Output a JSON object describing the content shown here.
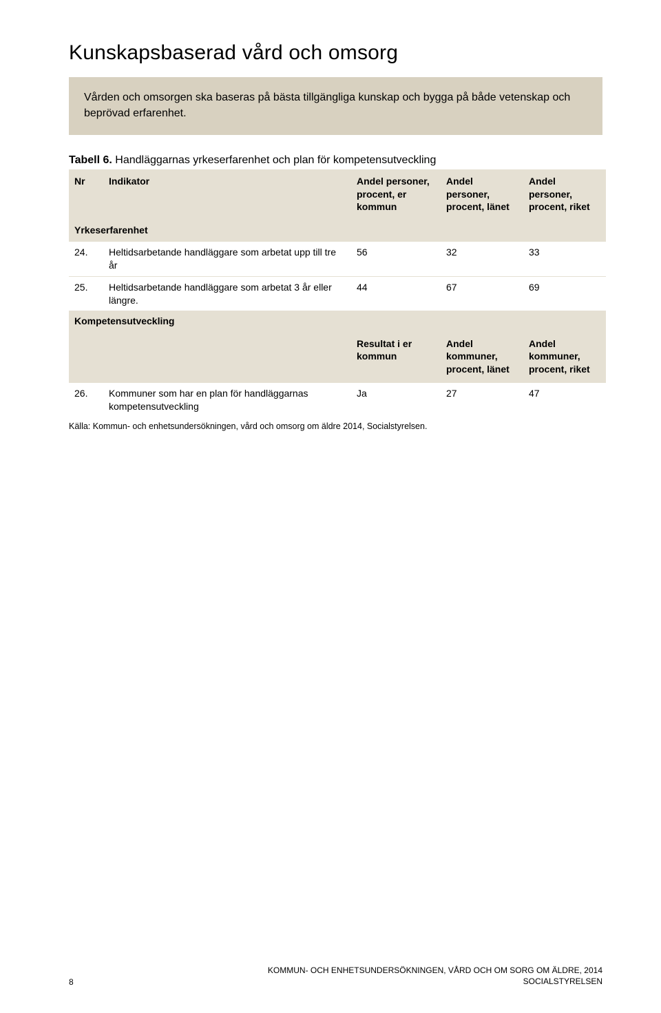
{
  "heading": "Kunskapsbaserad vård och omsorg",
  "callout": "Vården och omsorgen ska baseras på bästa tillgängliga kunskap och bygga på både vetenskap och beprövad erfarenhet.",
  "table": {
    "caption_label": "Tabell 6.",
    "caption_text": "Handläggarnas yrkeserfarenhet och plan för kompetensutveckling",
    "head": {
      "nr": "Nr",
      "indikator": "Indikator",
      "c1": "Andel personer, procent, er kommun",
      "c2": "Andel personer, procent, länet",
      "c3": "Andel personer, procent, riket"
    },
    "section1": "Yrkeserfarenhet",
    "row24": {
      "nr": "24.",
      "ind": "Heltidsarbetande handläggare som arbetat upp till tre år",
      "v1": "56",
      "v2": "32",
      "v3": "33"
    },
    "row25": {
      "nr": "25.",
      "ind": "Heltidsarbetande handläggare som arbetat 3 år eller längre.",
      "v1": "44",
      "v2": "67",
      "v3": "69"
    },
    "section2": "Kompetensutveckling",
    "subhead": {
      "c1": "Resultat i er kommun",
      "c2": "Andel kommuner, procent, länet",
      "c3": "Andel kommuner, procent, riket"
    },
    "row26": {
      "nr": "26.",
      "ind": "Kommuner som har en plan för handläggarnas kompetensutveckling",
      "v1": "Ja",
      "v2": "27",
      "v3": "47"
    },
    "source": "Källa: Kommun- och enhetsundersökningen, vård och omsorg om äldre 2014, Socialstyrelsen."
  },
  "footer": {
    "page": "8",
    "line1": "KOMMUN- OCH ENHETSUNDERSÖKNINGEN, VÅRD OCH OM SORG OM ÄLDRE, 2014",
    "line2": "SOCIALSTYRELSEN"
  }
}
